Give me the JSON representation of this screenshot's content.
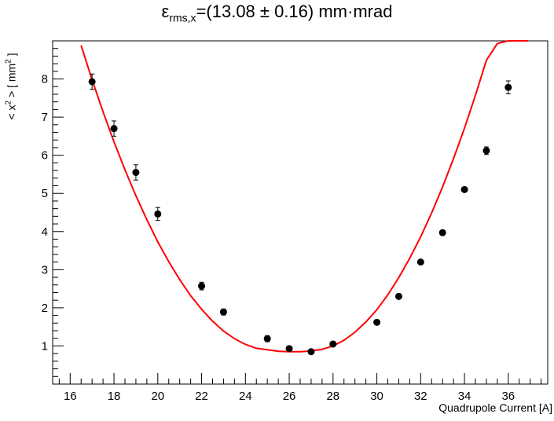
{
  "chart_data": {
    "type": "scatter",
    "title": {
      "symbol": "ε",
      "subscript": "rms,x",
      "text": "=(13.08 ± 0.16) mm·mrad"
    },
    "xlabel": "Quadrupole Current [A]",
    "ylabel": {
      "prefix": "< x",
      "sup1": "2",
      "middle": " > [ mm",
      "sup2": "2",
      "suffix": " ]"
    },
    "xlim": [
      15.2,
      37.8
    ],
    "ylim": [
      0,
      9.0
    ],
    "xticks": [
      16,
      18,
      20,
      22,
      24,
      26,
      28,
      30,
      32,
      34,
      36
    ],
    "yticks": [
      1,
      2,
      3,
      4,
      5,
      6,
      7,
      8
    ],
    "grid": false,
    "legend": "none",
    "series": [
      {
        "style": "points-with-errorbars",
        "color": "#000000",
        "x": [
          17,
          18,
          19,
          20,
          22,
          23,
          25,
          26,
          27,
          28,
          30,
          31,
          32,
          33,
          34,
          35,
          36
        ],
        "y": [
          7.93,
          6.7,
          5.55,
          4.46,
          2.57,
          1.89,
          1.19,
          0.93,
          0.85,
          1.05,
          1.62,
          2.3,
          3.2,
          3.97,
          5.1,
          6.12,
          7.78
        ],
        "yerr": [
          0.2,
          0.2,
          0.2,
          0.17,
          0.1,
          0.08,
          0.08,
          0.04,
          0.03,
          0.04,
          0.04,
          0.05,
          0.05,
          0.05,
          0.05,
          0.1,
          0.17
        ]
      },
      {
        "style": "fit-curve",
        "color": "#ff0000",
        "x": [
          16.5,
          17,
          17.5,
          18,
          18.5,
          19,
          19.5,
          20,
          20.5,
          21,
          21.5,
          22,
          22.5,
          23,
          23.5,
          24,
          24.5,
          25,
          25.5,
          26,
          26.5,
          26.8,
          27,
          27.5,
          28,
          28.5,
          29,
          29.5,
          30,
          30.5,
          31,
          31.5,
          32,
          32.5,
          33,
          33.5,
          34,
          34.5,
          35,
          35.5,
          36,
          36.5,
          36.9
        ],
        "y": [
          8.88,
          7.98,
          7.14,
          6.35,
          5.62,
          4.94,
          4.31,
          3.73,
          3.21,
          2.74,
          2.32,
          1.96,
          1.65,
          1.39,
          1.19,
          1.04,
          0.94,
          0.9,
          0.86,
          0.85,
          0.85,
          0.86,
          0.87,
          0.91,
          1.0,
          1.15,
          1.36,
          1.63,
          1.95,
          2.34,
          2.79,
          3.3,
          3.86,
          4.49,
          5.17,
          5.91,
          6.71,
          7.57,
          8.49,
          8.93,
          9.0,
          9.0,
          9.0
        ]
      }
    ]
  }
}
